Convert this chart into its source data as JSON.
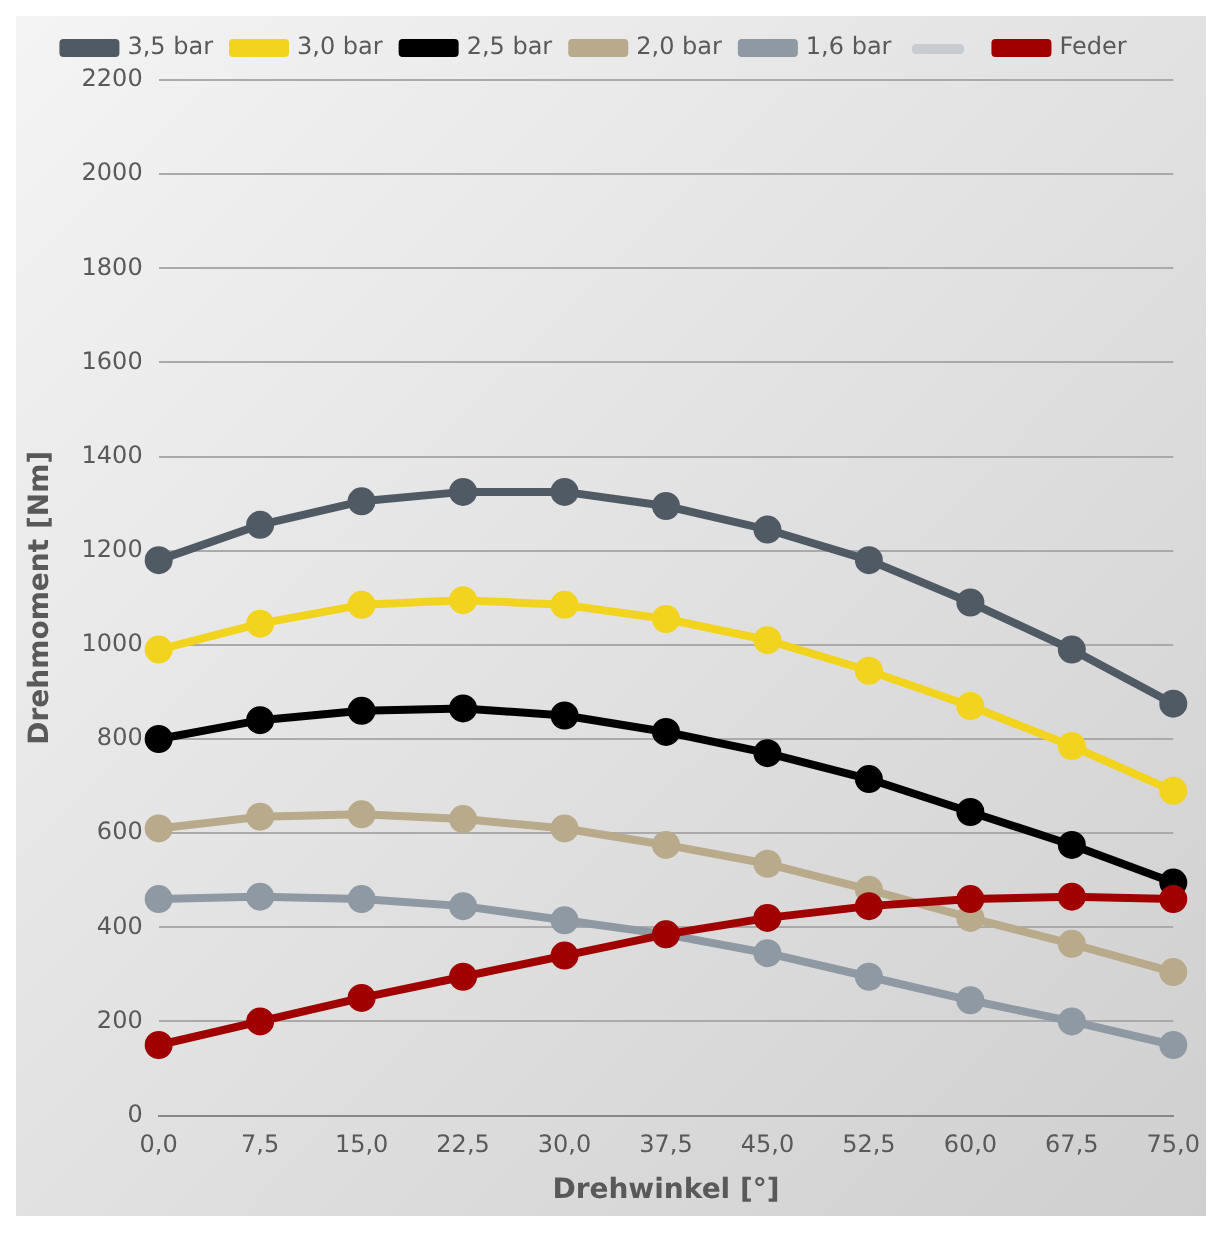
{
  "chart_data": {
    "type": "line",
    "xlabel": "Drehwinkel [°]",
    "ylabel": "Drehmoment [Nm]",
    "categories": [
      "0,0",
      "7,5",
      "15,0",
      "22,5",
      "30,0",
      "37,5",
      "45,0",
      "52,5",
      "60,0",
      "67,5",
      "75,0"
    ],
    "series": [
      {
        "name": "3,5 bar",
        "color": "#505a64",
        "values": [
          1180,
          1255,
          1305,
          1325,
          1325,
          1295,
          1245,
          1180,
          1090,
          990,
          875
        ]
      },
      {
        "name": "3,0 bar",
        "color": "#f2d41e",
        "values": [
          990,
          1045,
          1085,
          1095,
          1085,
          1055,
          1010,
          945,
          870,
          785,
          690
        ]
      },
      {
        "name": "2,5 bar",
        "color": "#000000",
        "values": [
          800,
          840,
          860,
          865,
          850,
          815,
          770,
          715,
          645,
          575,
          495
        ]
      },
      {
        "name": "2,0 bar",
        "color": "#b8aa8a",
        "values": [
          610,
          635,
          640,
          630,
          610,
          575,
          535,
          480,
          420,
          365,
          305
        ]
      },
      {
        "name": "1,6 bar",
        "color": "#8e99a3",
        "values": [
          460,
          465,
          460,
          445,
          415,
          385,
          345,
          295,
          245,
          200,
          150
        ]
      },
      {
        "color": "#c8ccd0",
        "values": [
          null,
          null,
          null,
          null,
          null,
          null,
          null,
          null,
          null,
          null,
          null
        ]
      },
      {
        "name": "Feder",
        "color": "#a00000",
        "values": [
          150,
          200,
          250,
          295,
          340,
          385,
          420,
          445,
          460,
          465,
          460
        ]
      }
    ],
    "ylim": [
      0,
      2200
    ],
    "yticks": [
      0,
      200,
      400,
      600,
      800,
      1000,
      1200,
      1400,
      1600,
      1800,
      2000,
      2200
    ],
    "grid": "y",
    "legend": "top",
    "marker": "circle",
    "line_style": "solid"
  }
}
